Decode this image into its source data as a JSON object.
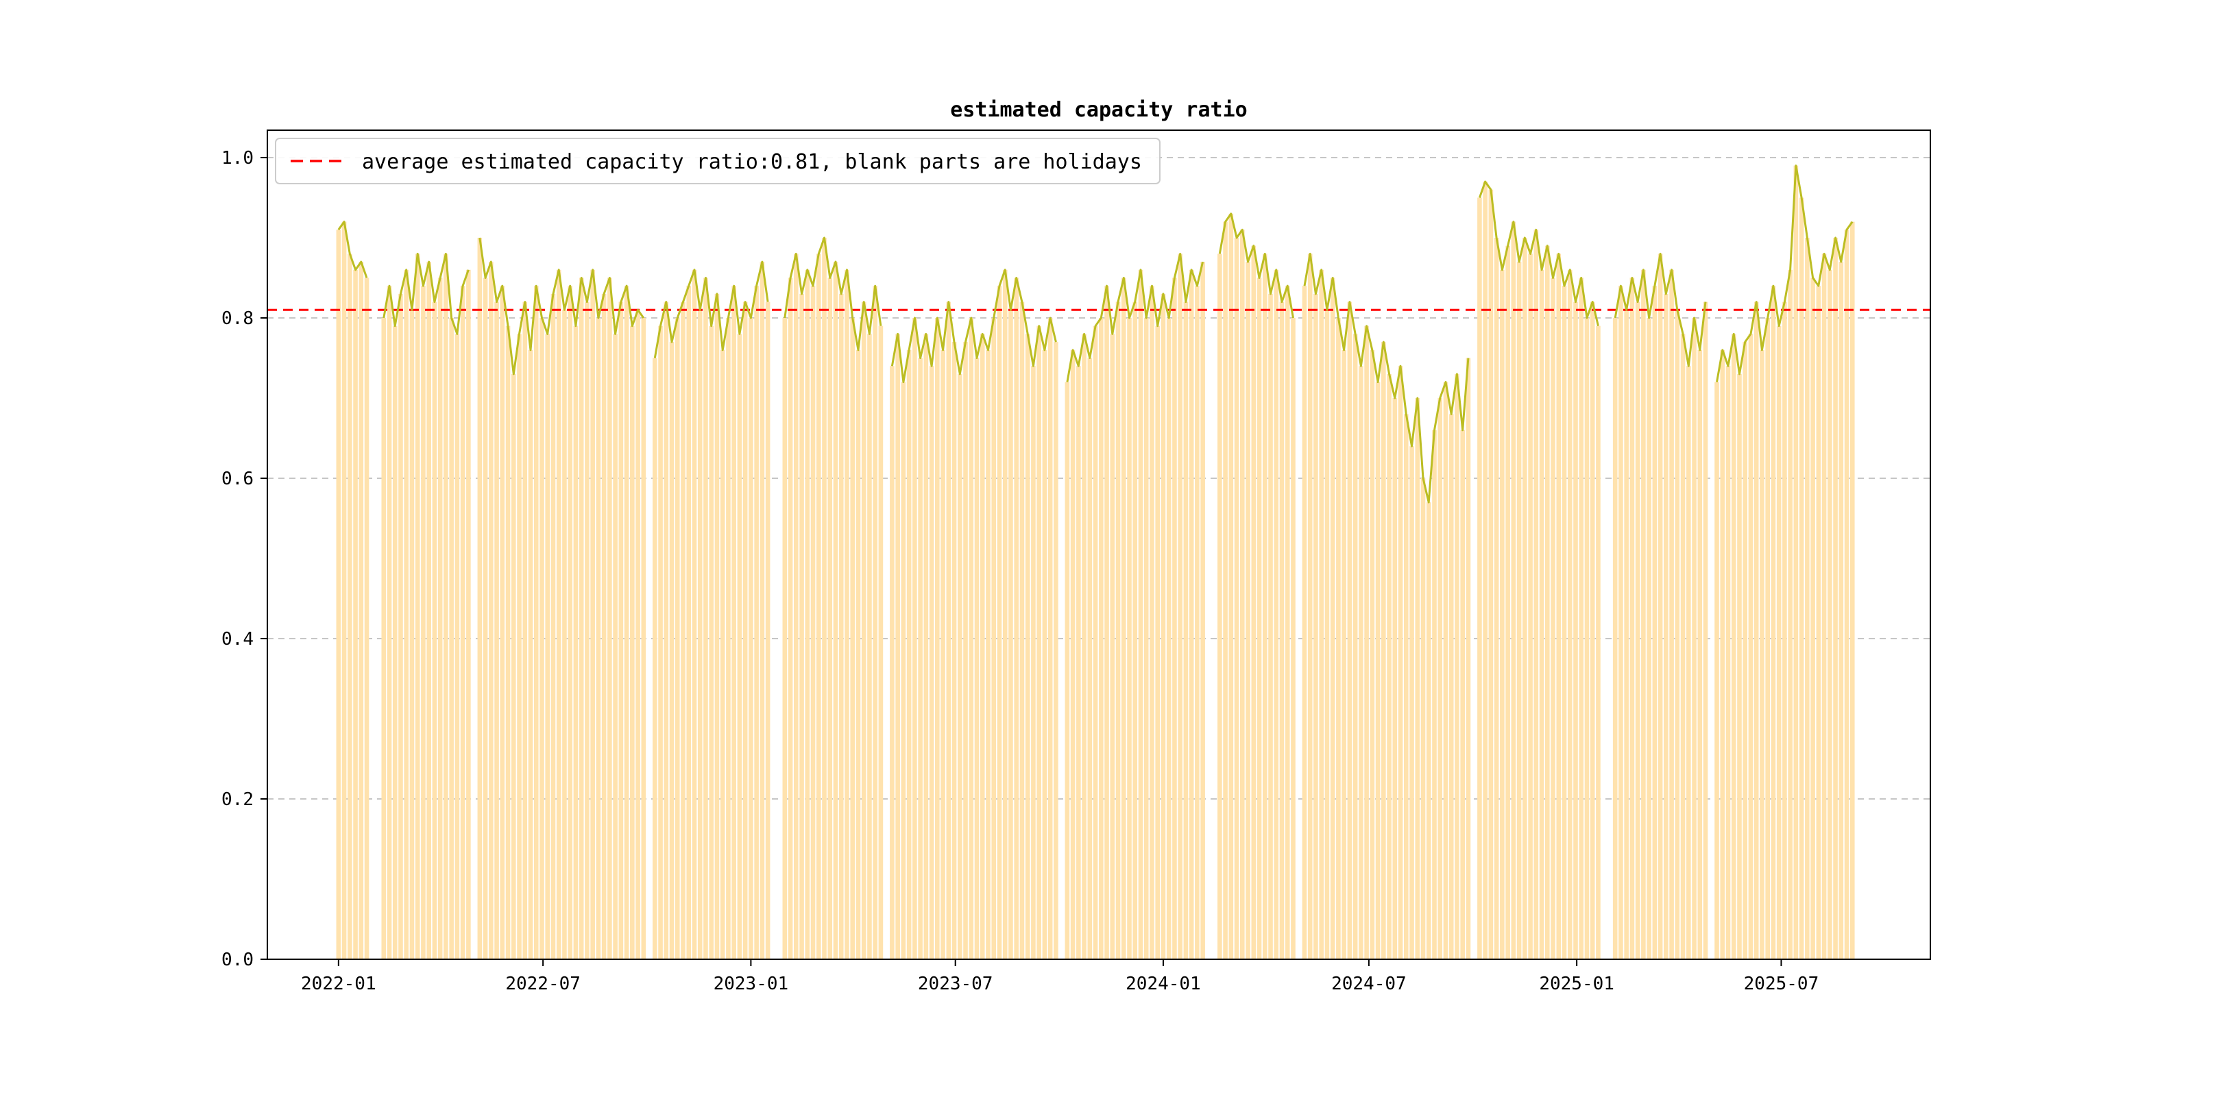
{
  "page": {
    "background": "#ffffff"
  },
  "chart_data": {
    "type": "line",
    "title": "estimated capacity ratio",
    "legend": [
      "average estimated capacity ratio:0.81, blank parts are holidays"
    ],
    "legend_position": "upper left",
    "average": 0.81,
    "grid": true,
    "ylim": [
      0.0,
      1.0
    ],
    "yticks": [
      "0.0",
      "0.2",
      "0.4",
      "0.6",
      "0.8",
      "1.0"
    ],
    "xticks": [
      "2022-01",
      "2022-07",
      "2023-01",
      "2023-07",
      "2024-01",
      "2024-07",
      "2025-01",
      "2025-07"
    ],
    "x_axis_start": "2021-10-30",
    "x_axis_end": "2025-11-10",
    "series_start": "2022-01-01",
    "step_days": 5,
    "colors": {
      "line": "#bcbd22",
      "bars": "#ffe2ad",
      "average": "#ff0000",
      "grid": "#b3b3b3",
      "frame": "#000000"
    },
    "values": [
      0.91,
      0.92,
      0.88,
      0.86,
      0.87,
      0.85,
      null,
      null,
      0.8,
      0.84,
      0.79,
      0.83,
      0.86,
      0.81,
      0.88,
      0.84,
      0.87,
      0.82,
      0.85,
      0.88,
      0.8,
      0.78,
      0.84,
      0.86,
      null,
      0.9,
      0.85,
      0.87,
      0.82,
      0.84,
      0.79,
      0.73,
      0.78,
      0.82,
      0.76,
      0.84,
      0.8,
      0.78,
      0.83,
      0.86,
      0.81,
      0.84,
      0.79,
      0.85,
      0.82,
      0.86,
      0.8,
      0.83,
      0.85,
      0.78,
      0.82,
      0.84,
      0.79,
      0.81,
      0.8,
      null,
      0.75,
      0.79,
      0.82,
      0.77,
      0.8,
      0.82,
      0.84,
      0.86,
      0.81,
      0.85,
      0.79,
      0.83,
      0.76,
      0.8,
      0.84,
      0.78,
      0.82,
      0.8,
      0.84,
      0.87,
      0.82,
      null,
      null,
      0.8,
      0.85,
      0.88,
      0.83,
      0.86,
      0.84,
      0.88,
      0.9,
      0.85,
      0.87,
      0.83,
      0.86,
      0.8,
      0.76,
      0.82,
      0.78,
      0.84,
      0.79,
      null,
      0.74,
      0.78,
      0.72,
      0.76,
      0.8,
      0.75,
      0.78,
      0.74,
      0.8,
      0.76,
      0.82,
      0.77,
      0.73,
      0.77,
      0.8,
      0.75,
      0.78,
      0.76,
      0.8,
      0.84,
      0.86,
      0.81,
      0.85,
      0.82,
      0.78,
      0.74,
      0.79,
      0.76,
      0.8,
      0.77,
      null,
      0.72,
      0.76,
      0.74,
      0.78,
      0.75,
      0.79,
      0.8,
      0.84,
      0.78,
      0.82,
      0.85,
      0.8,
      0.82,
      0.86,
      0.8,
      0.84,
      0.79,
      0.83,
      0.8,
      0.85,
      0.88,
      0.82,
      0.86,
      0.84,
      0.87,
      null,
      null,
      0.88,
      0.92,
      0.93,
      0.9,
      0.91,
      0.87,
      0.89,
      0.85,
      0.88,
      0.83,
      0.86,
      0.82,
      0.84,
      0.8,
      null,
      0.84,
      0.88,
      0.83,
      0.86,
      0.81,
      0.85,
      0.8,
      0.76,
      0.82,
      0.78,
      0.74,
      0.79,
      0.76,
      0.72,
      0.77,
      0.73,
      0.7,
      0.74,
      0.68,
      0.64,
      0.7,
      0.6,
      0.57,
      0.66,
      0.7,
      0.72,
      0.68,
      0.73,
      0.66,
      0.75,
      null,
      0.95,
      0.97,
      0.96,
      0.9,
      0.86,
      0.89,
      0.92,
      0.87,
      0.9,
      0.88,
      0.91,
      0.86,
      0.89,
      0.85,
      0.88,
      0.84,
      0.86,
      0.82,
      0.85,
      0.8,
      0.82,
      0.79,
      null,
      null,
      0.8,
      0.84,
      0.81,
      0.85,
      0.82,
      0.86,
      0.8,
      0.84,
      0.88,
      0.83,
      0.86,
      0.81,
      0.78,
      0.74,
      0.8,
      0.76,
      0.82,
      null,
      0.72,
      0.76,
      0.74,
      0.78,
      0.73,
      0.77,
      0.78,
      0.82,
      0.76,
      0.8,
      0.84,
      0.79,
      0.82,
      0.86,
      0.99,
      0.95,
      0.9,
      0.85,
      0.84,
      0.88,
      0.86,
      0.9,
      0.87,
      0.91,
      0.92
    ]
  }
}
